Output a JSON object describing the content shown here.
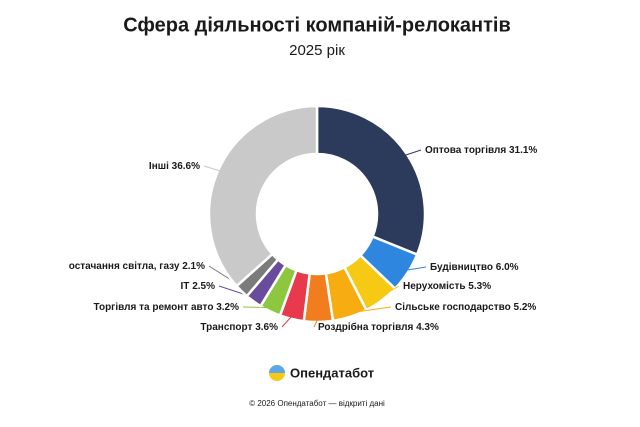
{
  "chart_data": {
    "type": "donut",
    "title": "Сфера діяльності компаній-релокантів",
    "subtitle": "2025 рік",
    "categories": [
      "Оптова торгівля",
      "Будівництво",
      "Нерухомість",
      "Сільське господарство",
      "Роздрібна торгівля",
      "Транспорт",
      "Торгівля та ремонт авто",
      "IT",
      "остачання світла, газу",
      "Інші"
    ],
    "values": [
      31.1,
      6.0,
      5.3,
      5.2,
      4.3,
      3.6,
      3.2,
      2.5,
      2.1,
      36.6
    ],
    "value_labels": [
      "31.1%",
      "6.0%",
      "5.3%",
      "5.2%",
      "4.3%",
      "3.6%",
      "3.2%",
      "2.5%",
      "2.1%",
      "36.6%"
    ],
    "colors": [
      "#2c3b5c",
      "#2e86de",
      "#f6c915",
      "#f7ad12",
      "#f27d1f",
      "#e8394d",
      "#8dc63f",
      "#6a4c9c",
      "#7b7b7b",
      "#c9c9c9",
      "#ececec"
    ]
  },
  "brand": "Опендатабот",
  "footer": "© 2026 Опендатабот — відкриті дані"
}
